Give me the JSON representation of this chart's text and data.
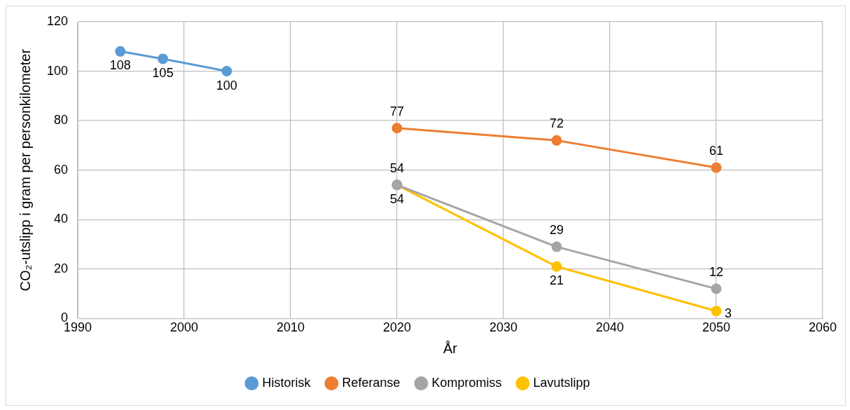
{
  "chart_data": {
    "type": "line",
    "xlabel": "År",
    "ylabel": "CO₂-utslipp i gram per personkilometer",
    "xlim": [
      1990,
      2060
    ],
    "xticks": [
      1990,
      2000,
      2010,
      2020,
      2030,
      2040,
      2050,
      2060
    ],
    "ylim": [
      0,
      120
    ],
    "yticks": [
      0,
      20,
      40,
      60,
      80,
      100,
      120
    ],
    "grid": true,
    "legend": "bottom",
    "marker": "circle",
    "data_labels": true,
    "series": [
      {
        "name": "Historisk",
        "color": "#5b9bd5",
        "x": [
          1994,
          1998,
          2004
        ],
        "values": [
          108,
          105,
          100
        ]
      },
      {
        "name": "Referanse",
        "color": "#ed7d31",
        "x": [
          2020,
          2035,
          2050
        ],
        "values": [
          77,
          72,
          61
        ]
      },
      {
        "name": "Kompromiss",
        "color": "#a5a5a5",
        "x": [
          2020,
          2035,
          2050
        ],
        "values": [
          54,
          29,
          12
        ]
      },
      {
        "name": "Lavutslipp",
        "color": "#ffc000",
        "x": [
          2020,
          2035,
          2050
        ],
        "values": [
          54,
          21,
          3
        ]
      }
    ]
  }
}
